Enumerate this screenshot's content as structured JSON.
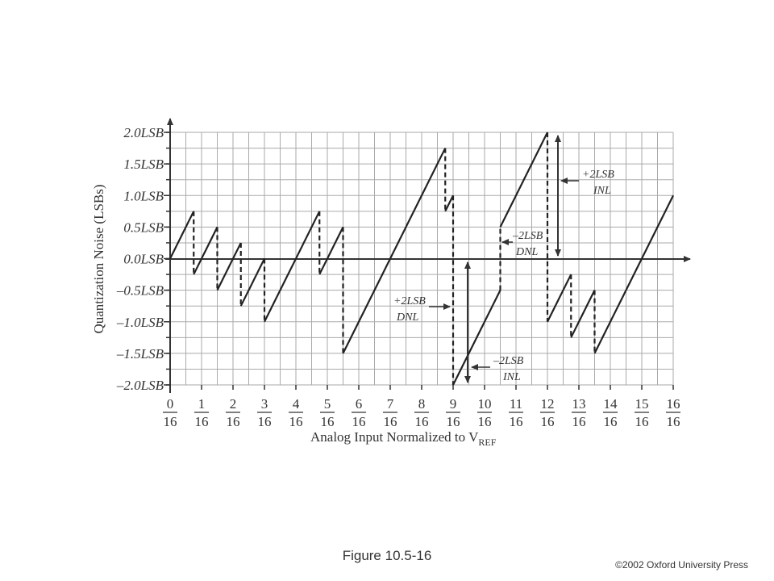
{
  "chart_data": {
    "type": "line",
    "y_label": "Quantization Noise (LSBs)",
    "x_label": "Analog Input Normalized to V",
    "x_label_subscript": "REF",
    "x_tick_denominator": "16",
    "xlim": [
      0,
      16
    ],
    "ylim": [
      -2,
      2
    ],
    "xticks": [
      {
        "value": 0,
        "label": "0"
      },
      {
        "value": 1,
        "label": "1"
      },
      {
        "value": 2,
        "label": "2"
      },
      {
        "value": 3,
        "label": "3"
      },
      {
        "value": 4,
        "label": "4"
      },
      {
        "value": 5,
        "label": "5"
      },
      {
        "value": 6,
        "label": "6"
      },
      {
        "value": 7,
        "label": "7"
      },
      {
        "value": 8,
        "label": "8"
      },
      {
        "value": 9,
        "label": "9"
      },
      {
        "value": 10,
        "label": "10"
      },
      {
        "value": 11,
        "label": "11"
      },
      {
        "value": 12,
        "label": "12"
      },
      {
        "value": 13,
        "label": "13"
      },
      {
        "value": 14,
        "label": "14"
      },
      {
        "value": 15,
        "label": "15"
      },
      {
        "value": 16,
        "label": "16"
      }
    ],
    "yticks": [
      {
        "value": 2,
        "label": "2.0LSB"
      },
      {
        "value": 1.5,
        "label": "1.5LSB"
      },
      {
        "value": 1,
        "label": "1.0LSB"
      },
      {
        "value": 0.5,
        "label": "0.5LSB"
      },
      {
        "value": 0,
        "label": "0.0LSB"
      },
      {
        "value": -0.5,
        "label": "–0.5LSB"
      },
      {
        "value": -1,
        "label": "–1.0LSB"
      },
      {
        "value": -1.5,
        "label": "–1.5LSB"
      },
      {
        "value": -2,
        "label": "–2.0LSB"
      }
    ],
    "grid": true,
    "color": "#222222",
    "x": [
      0,
      0.75,
      0.75,
      1.5,
      1.5,
      2.25,
      2.25,
      3,
      3,
      4.75,
      4.75,
      5.5,
      5.5,
      8.75,
      8.75,
      9,
      9,
      10.5,
      10.5,
      12,
      12,
      12.75,
      12.75,
      13.5,
      13.5,
      16
    ],
    "values": [
      0,
      0.75,
      -0.25,
      0.5,
      -0.5,
      0.25,
      -0.75,
      0,
      -1,
      0.75,
      -0.25,
      0.5,
      -1.5,
      1.75,
      0.75,
      1,
      -2,
      -0.5,
      0.5,
      2,
      -1,
      -0.25,
      -1.25,
      -0.5,
      -1.5,
      1
    ],
    "annotations": [
      {
        "line1": "+2LSB",
        "line2": "INL"
      },
      {
        "line1": "–2LSB",
        "line2": "DNL"
      },
      {
        "line1": "+2LSB",
        "line2": "DNL"
      },
      {
        "line1": "–2LSB",
        "line2": "INL"
      }
    ]
  },
  "caption": "Figure 10.5-16",
  "copyright": "©2002 Oxford University Press"
}
